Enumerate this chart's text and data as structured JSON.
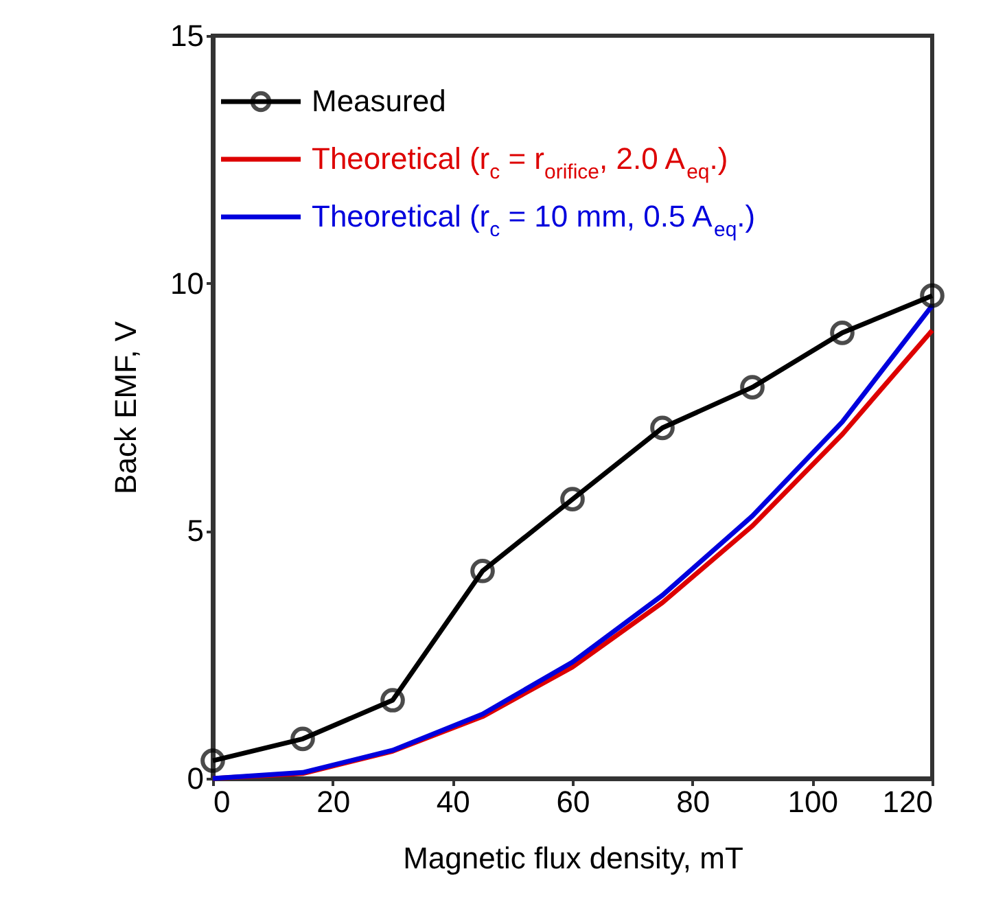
{
  "chart_data": {
    "type": "line",
    "xlabel": "Magnetic flux density, mT",
    "ylabel": "Back EMF, V",
    "x": [
      0,
      15,
      30,
      45,
      60,
      75,
      90,
      105,
      120
    ],
    "series": [
      {
        "name": "Measured",
        "color": "#000000",
        "marker": "circle",
        "values": [
          0.36,
          0.8,
          1.58,
          4.19,
          5.64,
          7.08,
          7.9,
          9.0,
          9.75
        ]
      },
      {
        "name": "Theoretical (r$_{c}$ = r$_{orifice}$, 2.0 A$_{eq}$.)",
        "color": "#dd0000",
        "values": [
          0,
          0.1,
          0.55,
          1.25,
          2.25,
          3.55,
          5.1,
          6.95,
          9.05
        ]
      },
      {
        "name": "Theoretical (r$_{c}$ = 10 mm, 0.5 A$_{eq}$.)",
        "color": "#0000dd",
        "values": [
          0,
          0.12,
          0.57,
          1.3,
          2.35,
          3.7,
          5.3,
          7.2,
          9.55
        ]
      }
    ],
    "xlim": [
      0,
      120
    ],
    "xticks": [
      0,
      20,
      40,
      60,
      80,
      100,
      120
    ],
    "ylim": [
      0,
      15
    ],
    "yticks": [
      0,
      5,
      10,
      15
    ],
    "grid": false,
    "legend": "top left",
    "line_style": "solid"
  }
}
